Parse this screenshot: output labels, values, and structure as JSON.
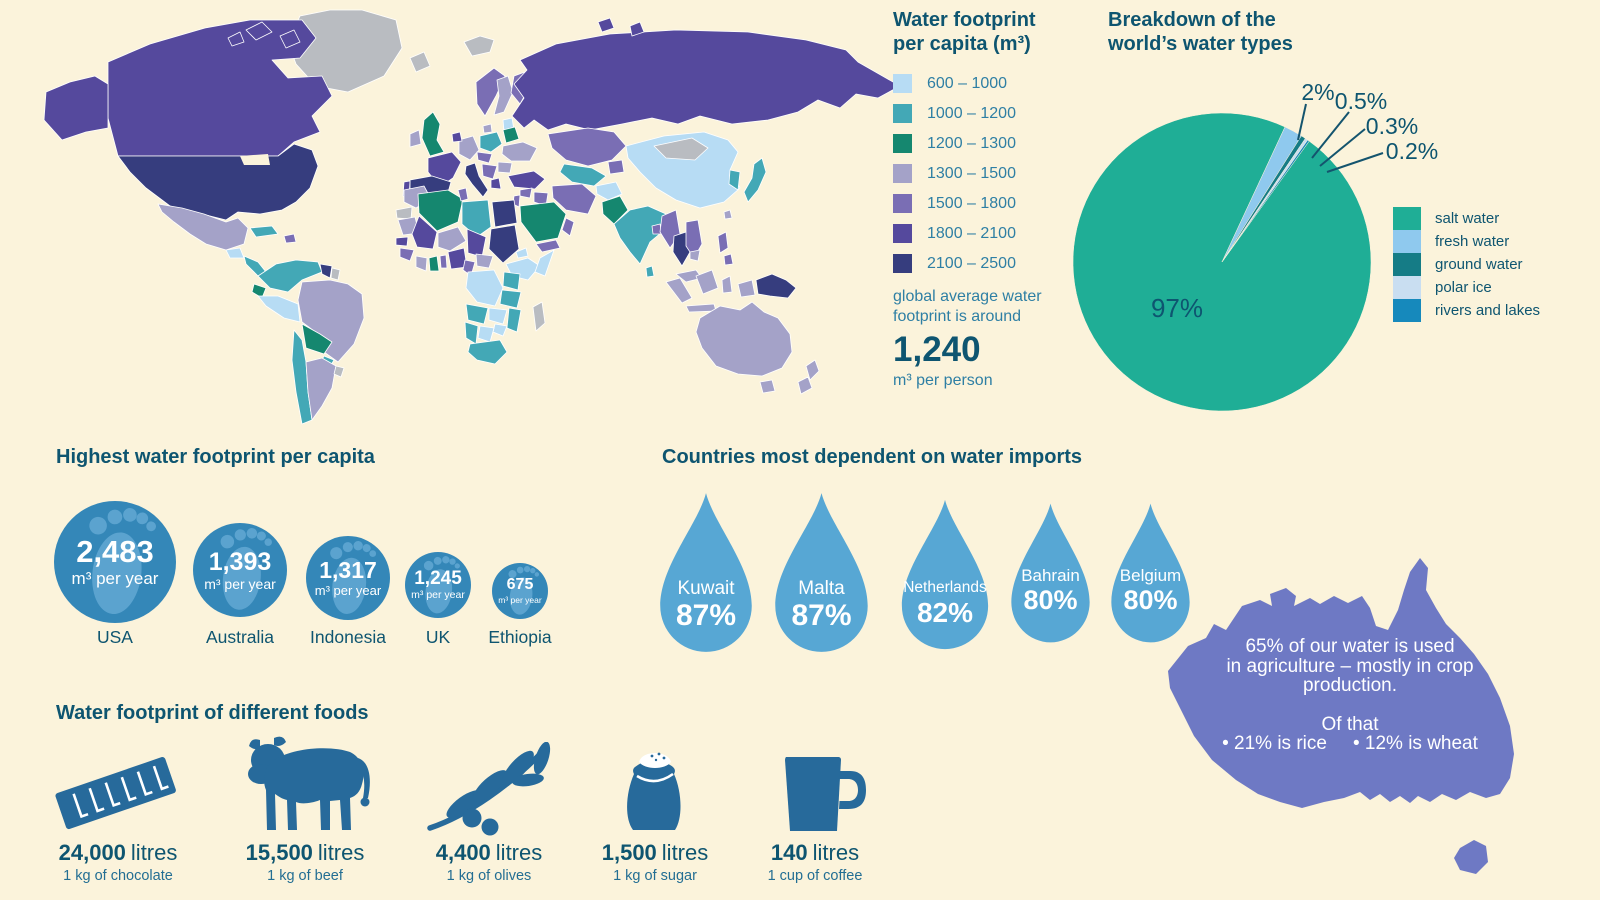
{
  "palette": {
    "background": "#FBF3DB",
    "text_dark": "#0E5570",
    "text_med": "#2E7FA4",
    "caption": "#236E93",
    "bubble_fill": "#3487B8",
    "bubble_foot": "#5BA3CF",
    "drop_fill": "#57A7D4",
    "australia_fill": "#6E79C4",
    "food_icon": "#276A9B",
    "leader_line": "#14546E",
    "white": "#FFFFFF"
  },
  "map_palette": {
    "b1": "#B7DCF4",
    "b2": "#43A8B6",
    "b3": "#15876F",
    "b4": "#A4A2C8",
    "b5": "#7A6EB4",
    "b6": "#55499D",
    "b7": "#363D7E",
    "nd": "#B9BCC1"
  },
  "chart_data": [
    {
      "type": "choropleth",
      "title": "Water footprint per capita (m³)",
      "legend": [
        {
          "label": "600 – 1000",
          "color": "#B7DCF4",
          "key": "b1"
        },
        {
          "label": "1000 – 1200",
          "color": "#43A8B6",
          "key": "b2"
        },
        {
          "label": "1200 – 1300",
          "color": "#15876F",
          "key": "b3"
        },
        {
          "label": "1300 – 1500",
          "color": "#A4A2C8",
          "key": "b4"
        },
        {
          "label": "1500 – 1800",
          "color": "#7A6EB4",
          "key": "b5"
        },
        {
          "label": "1800 – 2100",
          "color": "#55499D",
          "key": "b6"
        },
        {
          "label": "2100 – 2500",
          "color": "#363D7E",
          "key": "b7"
        }
      ],
      "no_data_color": "#B9BCC1",
      "note": "global average water footprint is around",
      "average_value": "1,240",
      "average_unit": "m³ per person"
    },
    {
      "type": "pie",
      "title": "Breakdown of the world’s water types",
      "labels": [
        "salt water",
        "fresh water",
        "ground water",
        "polar ice",
        "rivers and lakes"
      ],
      "values": [
        97,
        2,
        0.5,
        0.3,
        0.2
      ],
      "value_labels": [
        "97%",
        "2%",
        "0.5%",
        "0.3%",
        "0.2%"
      ],
      "colors": [
        "#1FAE96",
        "#8FC9EE",
        "#157C86",
        "#C9DEF1",
        "#1689BC"
      ],
      "start_angle_deg": 35.8,
      "legend_position": "right"
    },
    {
      "type": "bubble",
      "title": "Highest water footprint per capita",
      "categories": [
        "USA",
        "Australia",
        "Indonesia",
        "UK",
        "Ethiopia"
      ],
      "values": [
        2483,
        1393,
        1317,
        1245,
        675
      ],
      "value_labels": [
        "2,483",
        "1,393",
        "1,317",
        "1,245",
        "675"
      ],
      "unit": "m³ per year"
    },
    {
      "type": "drops",
      "title": "Countries most dependent on water imports",
      "categories": [
        "Kuwait",
        "Malta",
        "Netherlands",
        "Bahrain",
        "Belgium"
      ],
      "values": [
        87,
        87,
        82,
        80,
        80
      ],
      "value_labels": [
        "87%",
        "87%",
        "82%",
        "80%",
        "80%"
      ]
    },
    {
      "type": "pictogram",
      "title": "Water footprint of different foods",
      "items": [
        {
          "icon": "chocolate-bar-icon",
          "value": "24,000",
          "unit": "litres",
          "caption": "1 kg of chocolate"
        },
        {
          "icon": "cow-icon",
          "value": "15,500",
          "unit": "litres",
          "caption": "1 kg of beef"
        },
        {
          "icon": "olive-branch-icon",
          "value": "4,400",
          "unit": "litres",
          "caption": "1 kg of olives"
        },
        {
          "icon": "sugar-sack-icon",
          "value": "1,500",
          "unit": "litres",
          "caption": "1 kg of sugar"
        },
        {
          "icon": "coffee-mug-icon",
          "value": "140",
          "unit": "litres",
          "caption": "1 cup of coffee"
        }
      ]
    },
    {
      "type": "callout-map",
      "shape": "australia",
      "lines": [
        "65% of our water is used",
        "in agriculture – mostly in crop",
        "production."
      ],
      "subline": "Of that",
      "bullets": [
        "• 21% is rice",
        "• 12% is wheat"
      ]
    }
  ]
}
